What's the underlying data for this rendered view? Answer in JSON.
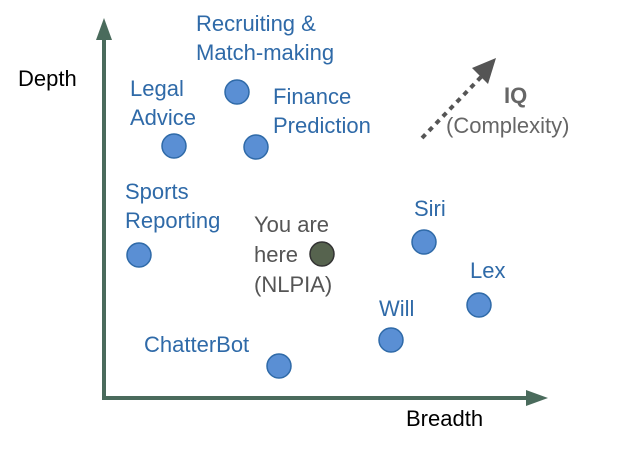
{
  "axes": {
    "y_label": "Depth",
    "x_label": "Breadth",
    "color": "#4a6b5c"
  },
  "iq_arrow": {
    "title": "IQ",
    "subtitle": "(Complexity)",
    "color": "#555555"
  },
  "points": [
    {
      "id": "recruiting",
      "lines": [
        "Recruiting &",
        "Match-making"
      ],
      "color": "#5a8fd4",
      "stroke": "#2f6aa8"
    },
    {
      "id": "legal",
      "lines": [
        "Legal",
        "Advice"
      ],
      "color": "#5a8fd4",
      "stroke": "#2f6aa8"
    },
    {
      "id": "finance",
      "lines": [
        "Finance",
        "Prediction"
      ],
      "color": "#5a8fd4",
      "stroke": "#2f6aa8"
    },
    {
      "id": "sports",
      "lines": [
        "Sports",
        "Reporting"
      ],
      "color": "#5a8fd4",
      "stroke": "#2f6aa8"
    },
    {
      "id": "here",
      "lines": [
        "You are",
        "here",
        "(NLPIA)"
      ],
      "color": "#56634e",
      "stroke": "#333333"
    },
    {
      "id": "siri",
      "lines": [
        "Siri"
      ],
      "color": "#5a8fd4",
      "stroke": "#2f6aa8"
    },
    {
      "id": "lex",
      "lines": [
        "Lex"
      ],
      "color": "#5a8fd4",
      "stroke": "#2f6aa8"
    },
    {
      "id": "will",
      "lines": [
        "Will"
      ],
      "color": "#5a8fd4",
      "stroke": "#2f6aa8"
    },
    {
      "id": "chatterbot",
      "lines": [
        "ChatterBot"
      ],
      "color": "#5a8fd4",
      "stroke": "#2f6aa8"
    }
  ]
}
